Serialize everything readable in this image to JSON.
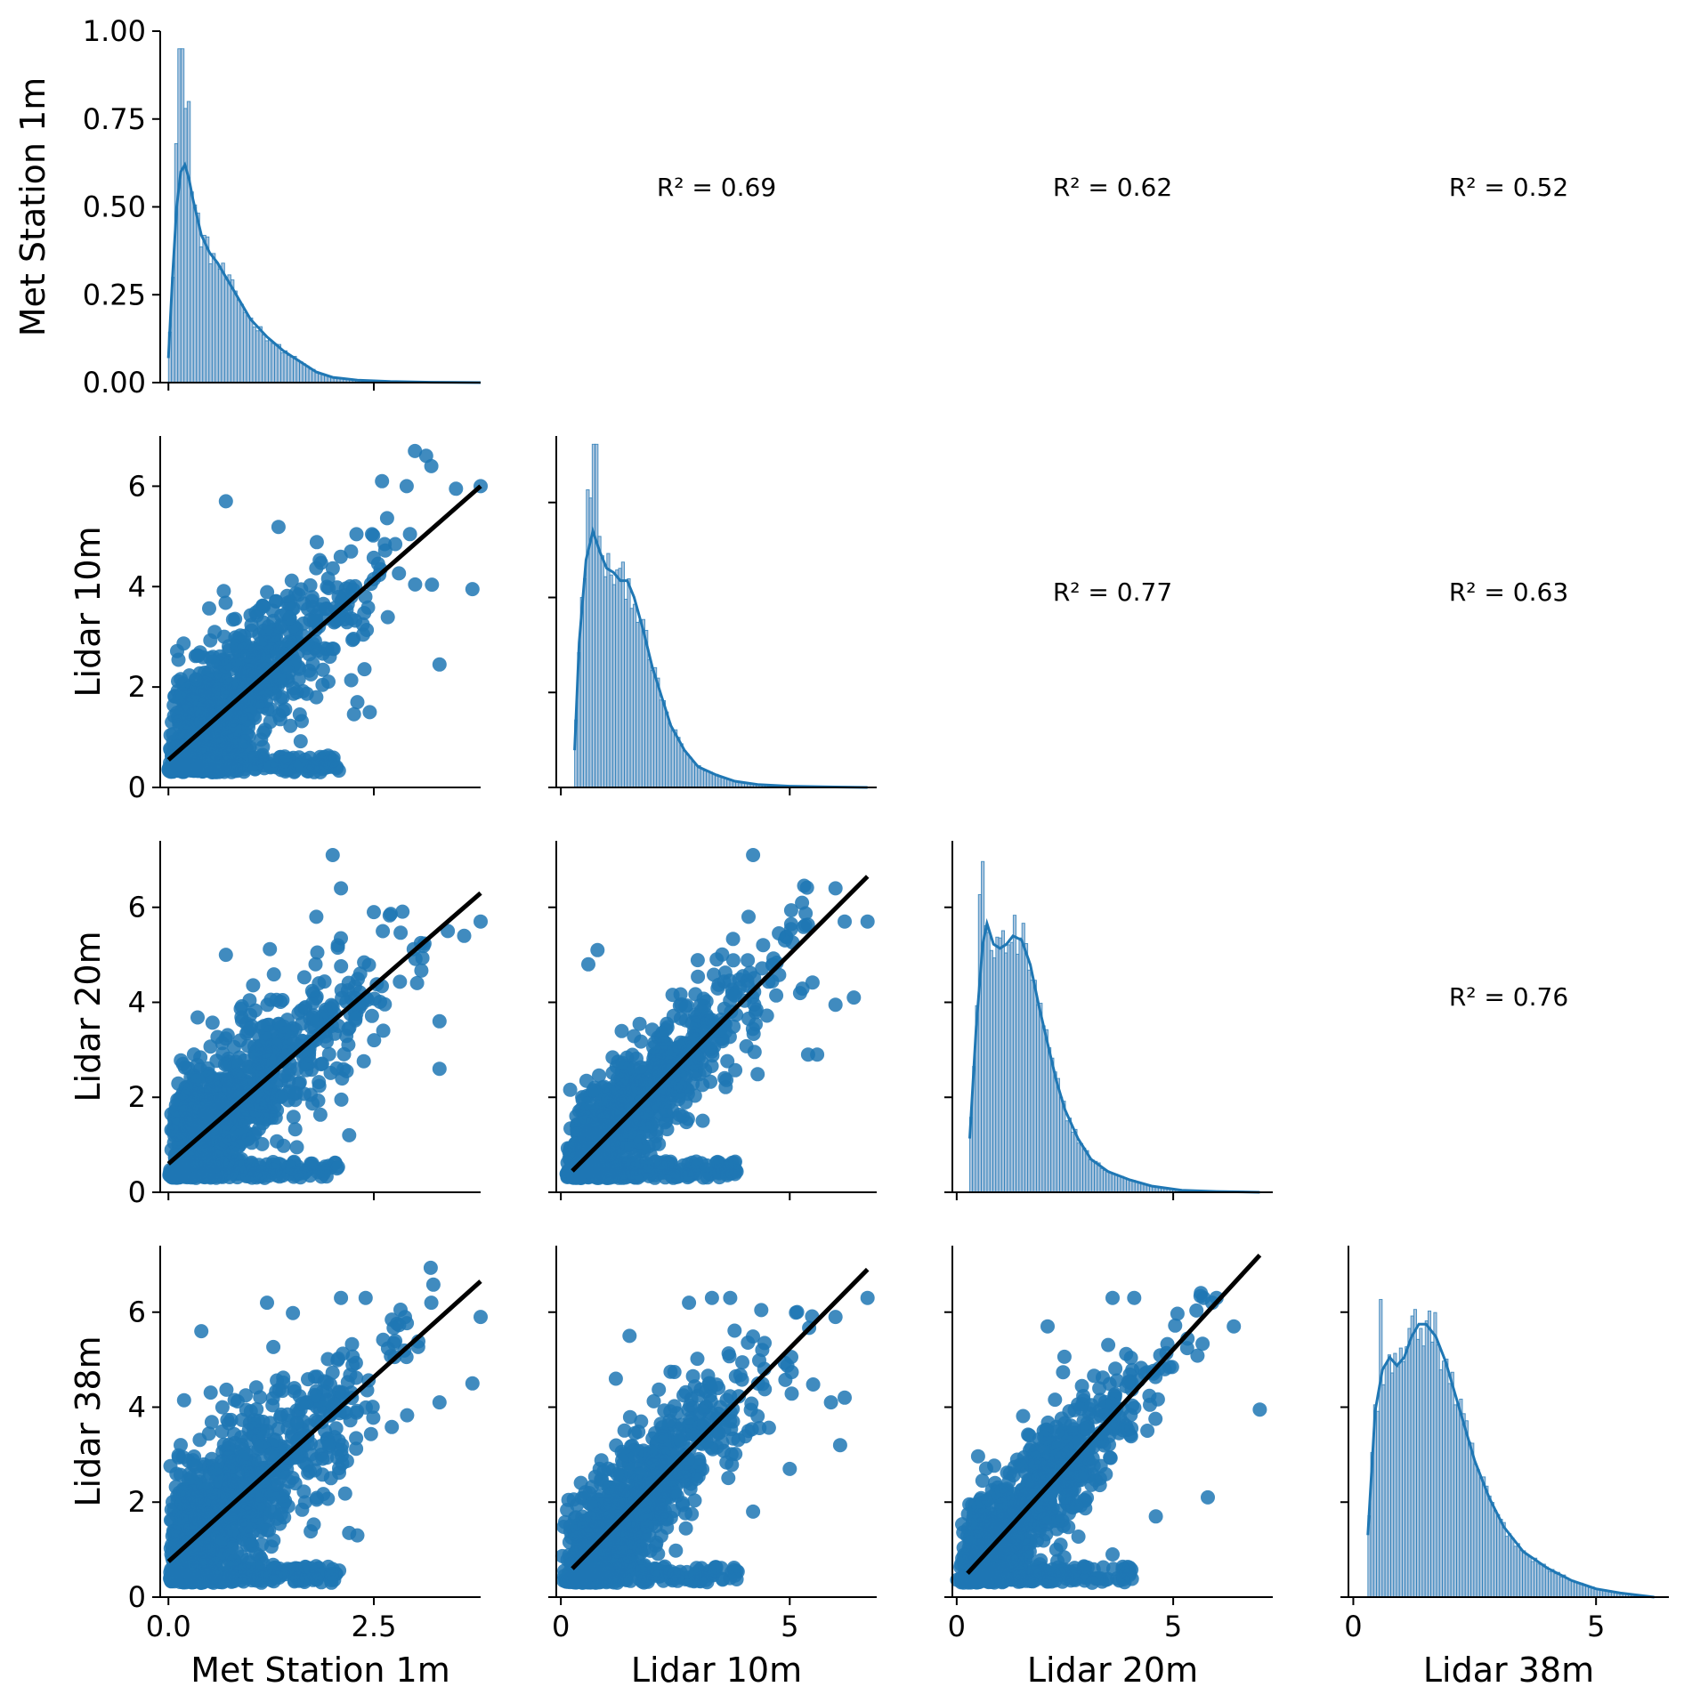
{
  "chart_data": {
    "type": "scatter",
    "variables": [
      "Met Station 1m",
      "Lidar 10m",
      "Lidar 20m",
      "Lidar 38m"
    ],
    "colors": {
      "series": "#1f77b4",
      "fit_line": "#000000"
    },
    "layout": "pairplot-lower-triangle",
    "diagonal": [
      {
        "variable": "Met Station 1m",
        "type": "histogram-kde",
        "ylabel": "Met Station 1m",
        "ylim": [
          0,
          1.0
        ],
        "yticks": [
          "0.00",
          "0.25",
          "0.50",
          "0.75",
          "1.00"
        ],
        "xlim": [
          -0.1,
          3.8
        ],
        "kde": [
          [
            0.0,
            0.07
          ],
          [
            0.05,
            0.3
          ],
          [
            0.1,
            0.5
          ],
          [
            0.15,
            0.6
          ],
          [
            0.2,
            0.62
          ],
          [
            0.25,
            0.58
          ],
          [
            0.3,
            0.52
          ],
          [
            0.4,
            0.42
          ],
          [
            0.5,
            0.37
          ],
          [
            0.6,
            0.34
          ],
          [
            0.7,
            0.3
          ],
          [
            0.8,
            0.26
          ],
          [
            0.9,
            0.22
          ],
          [
            1.0,
            0.18
          ],
          [
            1.2,
            0.13
          ],
          [
            1.4,
            0.09
          ],
          [
            1.6,
            0.06
          ],
          [
            1.8,
            0.03
          ],
          [
            2.0,
            0.015
          ],
          [
            2.3,
            0.007
          ],
          [
            2.7,
            0.003
          ],
          [
            3.2,
            0.001
          ],
          [
            3.8,
            0.0
          ]
        ],
        "hist_peaks": [
          [
            0.1,
            0.68
          ],
          [
            0.15,
            0.95
          ],
          [
            0.2,
            0.78
          ],
          [
            0.25,
            0.8
          ]
        ]
      },
      {
        "variable": "Lidar 10m",
        "type": "histogram-kde",
        "xlim": [
          -0.1,
          6.9
        ],
        "kde": [
          [
            0.3,
            0.09
          ],
          [
            0.4,
            0.35
          ],
          [
            0.55,
            0.55
          ],
          [
            0.7,
            0.62
          ],
          [
            0.85,
            0.57
          ],
          [
            1.0,
            0.53
          ],
          [
            1.15,
            0.52
          ],
          [
            1.3,
            0.5
          ],
          [
            1.45,
            0.5
          ],
          [
            1.6,
            0.46
          ],
          [
            1.8,
            0.38
          ],
          [
            2.0,
            0.29
          ],
          [
            2.2,
            0.22
          ],
          [
            2.4,
            0.15
          ],
          [
            2.7,
            0.09
          ],
          [
            3.0,
            0.05
          ],
          [
            3.4,
            0.03
          ],
          [
            3.8,
            0.015
          ],
          [
            4.3,
            0.007
          ],
          [
            5.0,
            0.003
          ],
          [
            6.0,
            0.001
          ],
          [
            6.7,
            0.0
          ]
        ],
        "hist_peaks": [
          [
            0.6,
            0.72
          ],
          [
            0.65,
            0.7
          ],
          [
            0.75,
            0.83
          ]
        ]
      },
      {
        "variable": "Lidar 20m",
        "type": "histogram-kde",
        "xlim": [
          -0.1,
          7.3
        ],
        "kde": [
          [
            0.3,
            0.13
          ],
          [
            0.45,
            0.4
          ],
          [
            0.6,
            0.6
          ],
          [
            0.7,
            0.65
          ],
          [
            0.85,
            0.6
          ],
          [
            1.0,
            0.59
          ],
          [
            1.15,
            0.6
          ],
          [
            1.3,
            0.62
          ],
          [
            1.5,
            0.61
          ],
          [
            1.7,
            0.55
          ],
          [
            1.9,
            0.45
          ],
          [
            2.1,
            0.36
          ],
          [
            2.3,
            0.27
          ],
          [
            2.5,
            0.2
          ],
          [
            2.8,
            0.13
          ],
          [
            3.1,
            0.08
          ],
          [
            3.5,
            0.05
          ],
          [
            4.0,
            0.03
          ],
          [
            4.5,
            0.015
          ],
          [
            5.2,
            0.005
          ],
          [
            6.0,
            0.002
          ],
          [
            7.0,
            0.0
          ]
        ],
        "hist_peaks": [
          [
            0.55,
            0.72
          ],
          [
            0.6,
            0.8
          ]
        ]
      },
      {
        "variable": "Lidar 38m",
        "type": "histogram-kde",
        "xlim": [
          -0.1,
          6.5
        ],
        "xticks": [
          "0",
          "5"
        ],
        "xlabel": "Lidar 38m",
        "kde": [
          [
            0.3,
            0.15
          ],
          [
            0.45,
            0.45
          ],
          [
            0.6,
            0.55
          ],
          [
            0.75,
            0.58
          ],
          [
            0.9,
            0.56
          ],
          [
            1.05,
            0.58
          ],
          [
            1.2,
            0.63
          ],
          [
            1.35,
            0.66
          ],
          [
            1.5,
            0.66
          ],
          [
            1.7,
            0.63
          ],
          [
            1.9,
            0.57
          ],
          [
            2.1,
            0.49
          ],
          [
            2.3,
            0.41
          ],
          [
            2.5,
            0.33
          ],
          [
            2.8,
            0.24
          ],
          [
            3.1,
            0.17
          ],
          [
            3.5,
            0.11
          ],
          [
            4.0,
            0.07
          ],
          [
            4.5,
            0.04
          ],
          [
            5.0,
            0.02
          ],
          [
            5.5,
            0.01
          ],
          [
            6.2,
            0.0
          ]
        ],
        "hist_peaks": [
          [
            0.55,
            0.72
          ],
          [
            1.2,
            0.68
          ]
        ]
      }
    ],
    "scatter_panels": [
      {
        "x": "Met Station 1m",
        "y": "Lidar 10m",
        "xlim": [
          -0.1,
          3.8
        ],
        "ylim": [
          0,
          7.0
        ],
        "fit": {
          "x0": 0.0,
          "y0": 0.55,
          "x1": 3.8,
          "y1": 6.0
        },
        "spread": 0.95,
        "xmode": 0.25,
        "xmax": 3.8,
        "outliers": [
          [
            3.0,
            6.7
          ],
          [
            3.2,
            6.4
          ],
          [
            2.6,
            6.1
          ],
          [
            2.9,
            6.0
          ],
          [
            3.8,
            6.0
          ],
          [
            3.5,
            5.95
          ],
          [
            0.7,
            5.7
          ],
          [
            3.7,
            3.95
          ],
          [
            3.3,
            2.45
          ],
          [
            2.3,
            1.7
          ],
          [
            2.45,
            1.5
          ]
        ]
      },
      {
        "x": "Met Station 1m",
        "y": "Lidar 20m",
        "xlim": [
          -0.1,
          3.8
        ],
        "ylim": [
          0,
          7.4
        ],
        "fit": {
          "x0": 0.0,
          "y0": 0.6,
          "x1": 3.8,
          "y1": 6.3
        },
        "spread": 1.0,
        "xmode": 0.25,
        "xmax": 3.8,
        "outliers": [
          [
            2.0,
            7.1
          ],
          [
            2.1,
            6.4
          ],
          [
            1.8,
            5.8
          ],
          [
            2.5,
            5.9
          ],
          [
            3.4,
            5.5
          ],
          [
            3.8,
            5.7
          ],
          [
            3.6,
            5.4
          ],
          [
            0.7,
            5.0
          ],
          [
            3.3,
            3.6
          ],
          [
            3.3,
            2.6
          ],
          [
            2.2,
            1.2
          ]
        ]
      },
      {
        "x": "Met Station 1m",
        "y": "Lidar 38m",
        "xlim": [
          -0.1,
          3.8
        ],
        "ylim": [
          0,
          7.4
        ],
        "fit": {
          "x0": 0.0,
          "y0": 0.75,
          "x1": 3.8,
          "y1": 6.65
        },
        "spread": 1.1,
        "xmode": 0.25,
        "xmax": 3.8,
        "outliers": [
          [
            2.1,
            6.3
          ],
          [
            2.4,
            6.3
          ],
          [
            1.2,
            6.2
          ],
          [
            3.2,
            6.2
          ],
          [
            3.8,
            5.9
          ],
          [
            0.4,
            5.6
          ],
          [
            3.7,
            4.5
          ],
          [
            3.3,
            4.1
          ],
          [
            2.3,
            1.3
          ],
          [
            2.2,
            1.35
          ]
        ]
      },
      {
        "x": "Lidar 10m",
        "y": "Lidar 20m",
        "xlim": [
          -0.1,
          6.9
        ],
        "ylim": [
          0,
          7.4
        ],
        "fit": {
          "x0": 0.25,
          "y0": 0.45,
          "x1": 6.7,
          "y1": 6.65
        },
        "spread": 0.8,
        "xmode": 0.9,
        "xmax": 6.6,
        "outliers": [
          [
            4.2,
            7.1
          ],
          [
            6.0,
            6.4
          ],
          [
            6.7,
            5.7
          ],
          [
            6.2,
            5.7
          ],
          [
            4.1,
            5.8
          ],
          [
            0.8,
            5.1
          ],
          [
            0.6,
            4.8
          ],
          [
            6.4,
            4.1
          ],
          [
            6.0,
            3.95
          ],
          [
            5.4,
            2.9
          ],
          [
            5.6,
            2.9
          ]
        ]
      },
      {
        "x": "Lidar 10m",
        "y": "Lidar 38m",
        "xlim": [
          -0.1,
          6.9
        ],
        "ylim": [
          0,
          7.4
        ],
        "fit": {
          "x0": 0.25,
          "y0": 0.6,
          "x1": 6.7,
          "y1": 6.9
        },
        "spread": 0.85,
        "xmode": 0.9,
        "xmax": 6.6,
        "outliers": [
          [
            3.3,
            6.3
          ],
          [
            3.7,
            6.3
          ],
          [
            2.8,
            6.2
          ],
          [
            6.7,
            6.3
          ],
          [
            6.0,
            5.9
          ],
          [
            1.5,
            5.5
          ],
          [
            1.2,
            4.6
          ],
          [
            6.2,
            4.2
          ],
          [
            5.9,
            4.1
          ],
          [
            6.1,
            3.2
          ],
          [
            4.2,
            1.8
          ],
          [
            5.0,
            2.7
          ]
        ]
      },
      {
        "x": "Lidar 20m",
        "y": "Lidar 38m",
        "xlim": [
          -0.1,
          7.3
        ],
        "ylim": [
          0,
          7.4
        ],
        "fit": {
          "x0": 0.25,
          "y0": 0.5,
          "x1": 7.0,
          "y1": 7.2
        },
        "spread": 0.8,
        "xmode": 1.0,
        "xmax": 7.0,
        "outliers": [
          [
            3.6,
            6.3
          ],
          [
            4.1,
            6.3
          ],
          [
            5.7,
            6.3
          ],
          [
            6.0,
            6.3
          ],
          [
            6.4,
            5.7
          ],
          [
            2.1,
            5.7
          ],
          [
            5.9,
            6.2
          ],
          [
            7.0,
            3.95
          ],
          [
            5.8,
            2.1
          ],
          [
            3.6,
            0.9
          ],
          [
            4.6,
            1.7
          ],
          [
            2.3,
            1.0
          ]
        ]
      }
    ],
    "r2_annotations": [
      {
        "row": 0,
        "col": 1,
        "label": "R² = 0.69"
      },
      {
        "row": 0,
        "col": 2,
        "label": "R² = 0.62"
      },
      {
        "row": 0,
        "col": 3,
        "label": "R² = 0.52"
      },
      {
        "row": 1,
        "col": 2,
        "label": "R² = 0.77"
      },
      {
        "row": 1,
        "col": 3,
        "label": "R² = 0.63"
      },
      {
        "row": 2,
        "col": 3,
        "label": "R² = 0.76"
      }
    ],
    "axes": {
      "row_ylabels": [
        "Met Station 1m",
        "Lidar 10m",
        "Lidar 20m",
        "Lidar 38m"
      ],
      "row_yticks": [
        [
          "0.00",
          "0.25",
          "0.50",
          "0.75",
          "1.00"
        ],
        [
          "0",
          "2",
          "4",
          "6"
        ],
        [
          "0",
          "2",
          "4",
          "6"
        ],
        [
          "0",
          "2",
          "4",
          "6"
        ]
      ],
      "col_xlabels": [
        "Met Station 1m",
        "Lidar 10m",
        "Lidar 20m",
        "Lidar 38m"
      ],
      "col_xticks": [
        [
          "0.0",
          "2.5"
        ],
        [
          "0",
          "5"
        ],
        [
          "0",
          "5"
        ],
        [
          "0",
          "5"
        ]
      ]
    }
  }
}
